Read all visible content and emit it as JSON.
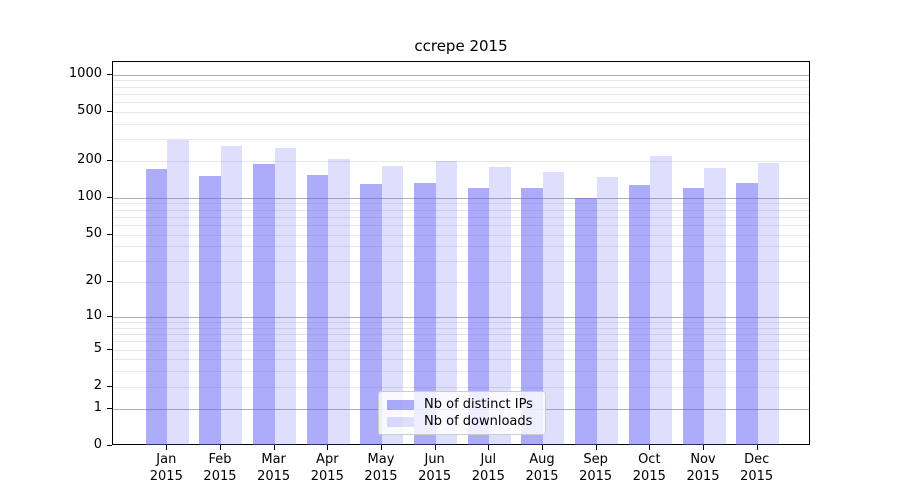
{
  "title": "ccrepe 2015",
  "colors": {
    "bar_base": "rgb(90,90,245)",
    "bar_ips": "rgba(90,90,245,0.5)",
    "bar_downloads": "rgba(90,90,245,0.2)",
    "grid_major": "#b0b0b0",
    "grid_minor": "#e7e7e7",
    "axis": "#000000",
    "legend_border": "#cccccc",
    "legend_bg": "rgba(255,255,255,0.8)"
  },
  "chart_data": {
    "type": "bar",
    "title": "ccrepe 2015",
    "categories": [
      "Jan 2015",
      "Feb 2015",
      "Mar 2015",
      "Apr 2015",
      "May 2015",
      "Jun 2015",
      "Jul 2015",
      "Aug 2015",
      "Sep 2015",
      "Oct 2015",
      "Nov 2015",
      "Dec 2015"
    ],
    "x_tick_months": [
      "Jan",
      "Feb",
      "Mar",
      "Apr",
      "May",
      "Jun",
      "Jul",
      "Aug",
      "Sep",
      "Oct",
      "Nov",
      "Dec"
    ],
    "x_tick_year": "2015",
    "series": [
      {
        "name": "Nb of distinct IPs",
        "color": "rgba(90,90,245,0.5)",
        "values": [
          171,
          150,
          190,
          153,
          130,
          132,
          120,
          121,
          100,
          128,
          120,
          132
        ]
      },
      {
        "name": "Nb of downloads",
        "color": "rgba(90,90,245,0.2)",
        "values": [
          295,
          262,
          255,
          207,
          182,
          200,
          179,
          162,
          149,
          218,
          175,
          192
        ]
      }
    ],
    "xlabel": "",
    "ylabel": "",
    "yscale": "log1p",
    "ylim": [
      0,
      1264
    ],
    "y_tick_labels": [
      1000,
      500,
      200,
      100,
      50,
      20,
      10,
      5,
      2,
      1,
      0
    ],
    "grid": {
      "major": [
        1,
        10,
        100,
        1000
      ],
      "minor": [
        2,
        3,
        4,
        5,
        6,
        7,
        8,
        9,
        20,
        30,
        40,
        50,
        60,
        70,
        80,
        90,
        200,
        300,
        400,
        500,
        600,
        700,
        800,
        900
      ]
    },
    "legend": {
      "position": "bottom-center",
      "entries": [
        "Nb of distinct IPs",
        "Nb of downloads"
      ]
    }
  }
}
